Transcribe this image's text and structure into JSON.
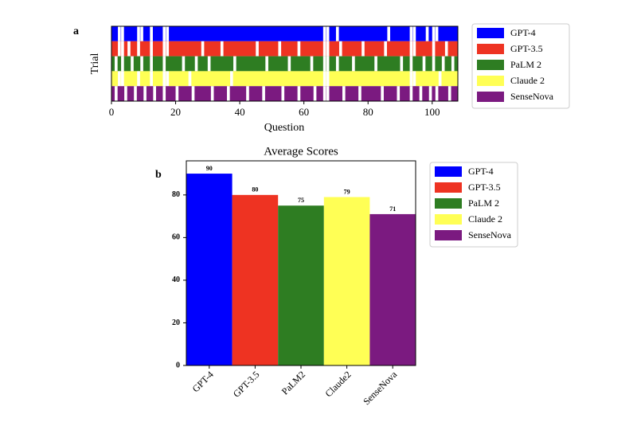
{
  "chart_data": [
    {
      "type": "strip",
      "panel": "a",
      "x_label": "Question",
      "y_label": "Trial",
      "xlim": [
        0,
        108
      ],
      "xticks": [
        0,
        20,
        40,
        60,
        80,
        100
      ],
      "series": [
        {
          "name": "GPT-4",
          "color": "#0000ff",
          "gaps": [
            2,
            3,
            8,
            9,
            12,
            16,
            17,
            66,
            67,
            70,
            86,
            93,
            94,
            98,
            100,
            101
          ]
        },
        {
          "name": "GPT-3.5",
          "color": "#ee3322",
          "gaps": [
            2,
            3,
            5,
            8,
            12,
            16,
            17,
            28,
            34,
            45,
            52,
            58,
            66,
            67,
            71,
            78,
            85,
            93,
            94,
            100,
            104
          ]
        },
        {
          "name": "PaLM 2",
          "color": "#2e7d22",
          "gaps": [
            1,
            3,
            6,
            9,
            12,
            16,
            22,
            26,
            30,
            38,
            48,
            55,
            62,
            66,
            67,
            70,
            75,
            82,
            90,
            93,
            97,
            100,
            103,
            106
          ]
        },
        {
          "name": "Claude 2",
          "color": "#ffff55",
          "gaps": [
            2,
            3,
            8,
            12,
            16,
            17,
            24,
            37,
            66,
            67,
            93,
            94,
            102
          ]
        },
        {
          "name": "SenseNova",
          "color": "#7b1a80",
          "gaps": [
            1,
            4,
            7,
            10,
            13,
            16,
            20,
            25,
            31,
            36,
            42,
            47,
            53,
            58,
            63,
            66,
            67,
            72,
            77,
            84,
            89,
            93,
            96,
            99,
            101,
            105
          ]
        }
      ]
    },
    {
      "type": "bar",
      "panel": "b",
      "title": "Average Scores",
      "categories": [
        "GPT-4",
        "GPT-3.5",
        "PaLM2",
        "Claude2",
        "SenseNova"
      ],
      "values": [
        90,
        80,
        75,
        79,
        71
      ],
      "colors": [
        "#0000ff",
        "#ee3322",
        "#2e7d22",
        "#ffff55",
        "#7b1a80"
      ],
      "legend": [
        "GPT-4",
        "GPT-3.5",
        "PaLM 2",
        "Claude 2",
        "SenseNova"
      ],
      "ylim": [
        0,
        96
      ],
      "yticks": [
        0,
        20,
        40,
        60,
        80
      ]
    }
  ]
}
